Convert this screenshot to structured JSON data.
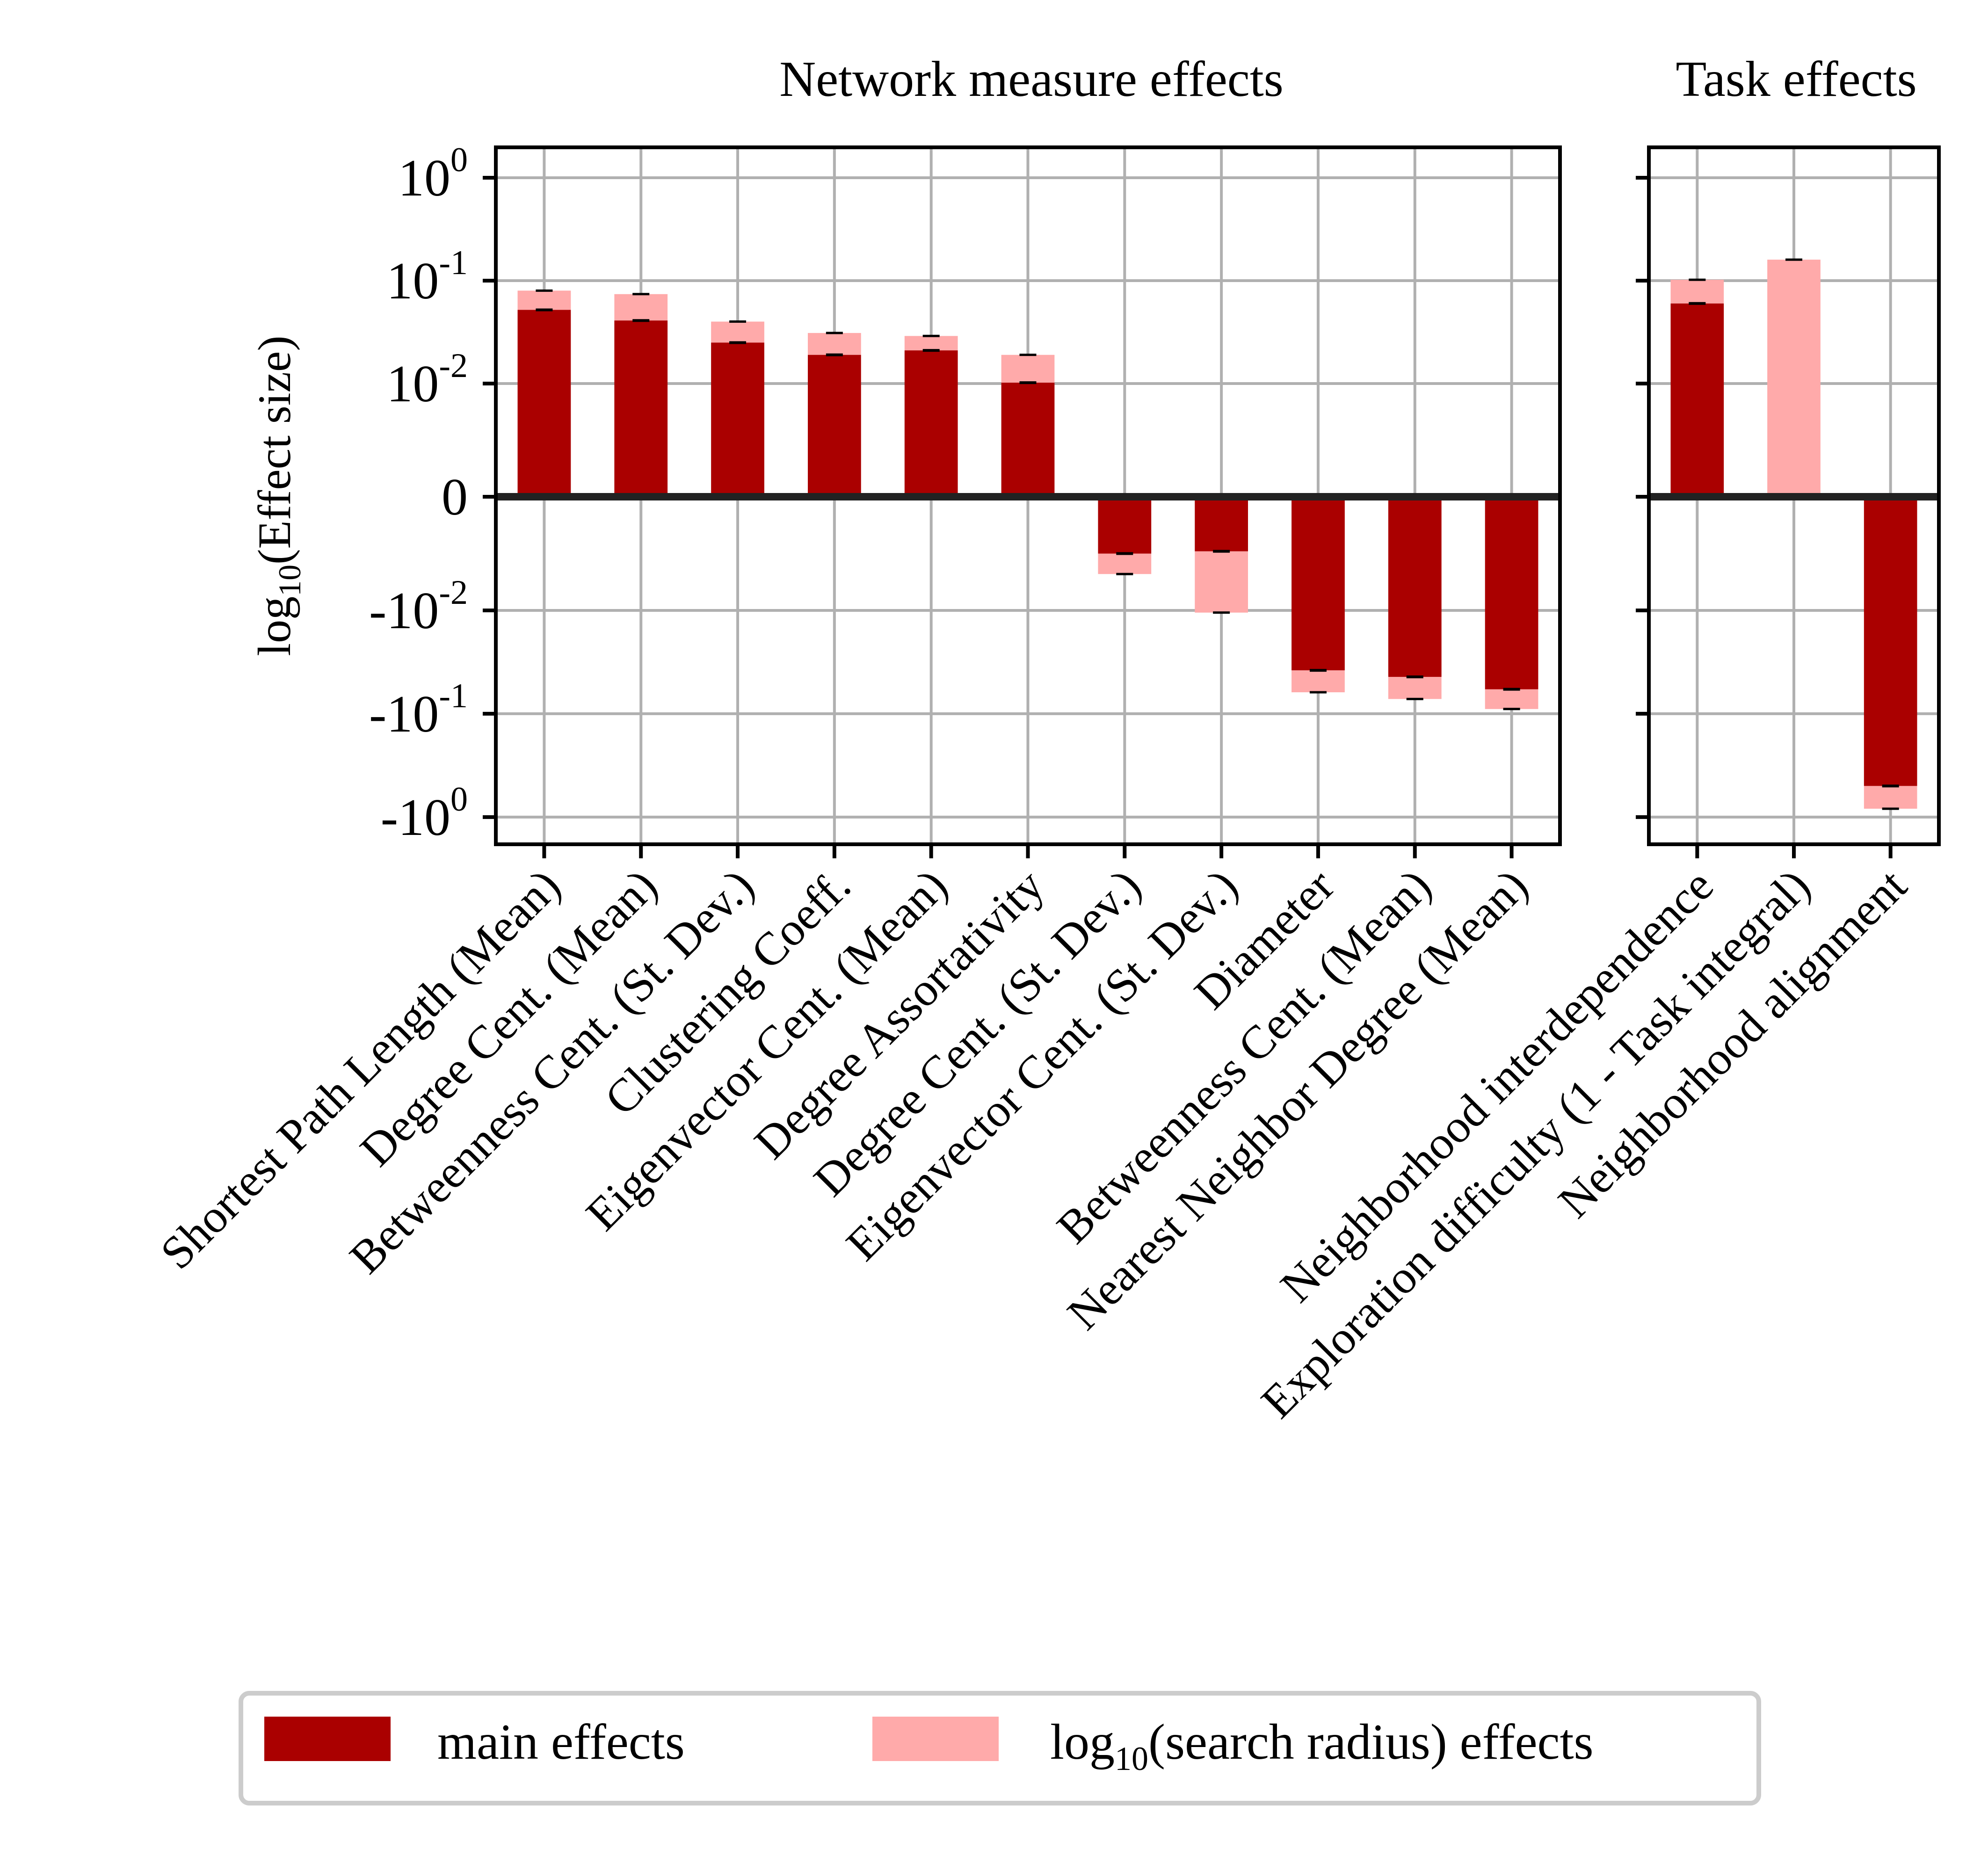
{
  "chart_data": [
    {
      "type": "bar",
      "stacked": true,
      "title": "Network measure effects",
      "ylabel": "log10(Effect size)",
      "yscale": "symlog",
      "yticks": [
        "10^0",
        "10^-1",
        "10^-2",
        "0",
        "-10^-2",
        "-10^-1",
        "-10^0"
      ],
      "categories": [
        "Shortest Path Length (Mean)",
        "Degree Cent. (Mean)",
        "Betweenness Cent. (St. Dev.)",
        "Clustering Coeff.",
        "Eigenvector Cent. (Mean)",
        "Degree Assortativity",
        "Degree Cent. (St. Dev.)",
        "Eigenvector Cent. (St. Dev.)",
        "Diameter",
        "Betweenness Cent. (Mean)",
        "Nearest Neighbor Degree (Mean)"
      ],
      "series": [
        {
          "name": "main effects",
          "values": [
            0.052,
            0.041,
            0.025,
            0.019,
            0.021,
            0.0102,
            -0.005,
            -0.0048,
            -0.038,
            -0.044,
            -0.058
          ]
        },
        {
          "name": "log10(search radius) effects",
          "values": [
            0.028,
            0.033,
            0.015,
            0.012,
            0.008,
            0.0088,
            -0.0018,
            -0.0057,
            -0.024,
            -0.028,
            -0.032
          ]
        }
      ],
      "error_tops": [
        0.08,
        0.074,
        0.04,
        0.031,
        0.029,
        0.019,
        -0.0068,
        -0.0105,
        -0.062,
        -0.072,
        -0.09
      ],
      "error_mids": [
        0.052,
        0.041,
        0.025,
        0.019,
        0.021,
        0.0102,
        -0.005,
        -0.0048,
        -0.038,
        -0.044,
        -0.058
      ],
      "grid": true
    },
    {
      "type": "bar",
      "stacked": true,
      "title": "Task effects",
      "yscale": "symlog",
      "categories": [
        "Neighborhood interdependence",
        "Exploration difficulty (1 - Task integral)",
        "Neighborhood alignment"
      ],
      "series": [
        {
          "name": "main effects",
          "values": [
            0.06,
            0.0,
            -0.5
          ]
        },
        {
          "name": "log10(search radius) effects",
          "values": [
            0.042,
            0.16,
            -0.33
          ]
        }
      ],
      "error_tops": [
        0.102,
        0.16,
        -0.83
      ],
      "error_mids": [
        0.06,
        0.0,
        -0.5
      ],
      "grid": true
    }
  ],
  "legend": {
    "location": "bottom-center",
    "items": [
      {
        "label": "main effects",
        "color": "#aa0000"
      },
      {
        "label": "log10(search radius) effects",
        "color": "#ffaaaa"
      }
    ]
  },
  "colors": {
    "main": "#aa0000",
    "radius": "#ffaaaa",
    "grid": "#b0b0b0",
    "zero_line": "#222222"
  }
}
